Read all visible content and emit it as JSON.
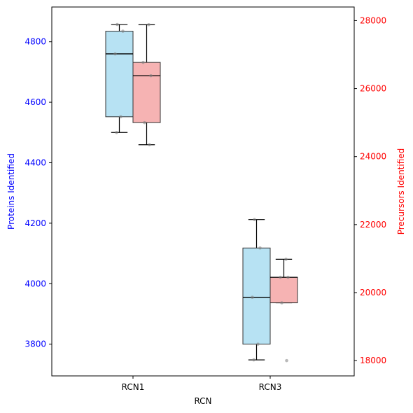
{
  "chart_data": {
    "type": "box",
    "title": "",
    "xlabel": "RCN",
    "categories": [
      "RCN1",
      "RCN3"
    ],
    "y_left": {
      "label": "Proteins Identified",
      "color": "#0000ff",
      "range": [
        3695,
        4915
      ],
      "ticks": [
        3800,
        4000,
        4200,
        4400,
        4600,
        4800
      ]
    },
    "y_right": {
      "label": "Precursors Identified",
      "color": "#ff0000",
      "range": [
        17550,
        28400
      ],
      "ticks": [
        18000,
        20000,
        22000,
        24000,
        26000,
        28000
      ]
    },
    "series": [
      {
        "axis": "left",
        "fill": "#87ceeb",
        "boxes": [
          {
            "category": "RCN1",
            "whisker_low": 4500,
            "q1": 4552,
            "median": 4760,
            "q3": 4835,
            "whisker_high": 4857,
            "points": [
              4500,
              4552,
              4760,
              4835,
              4857
            ]
          },
          {
            "category": "RCN3",
            "whisker_low": 3748,
            "q1": 3800,
            "median": 3955,
            "q3": 4118,
            "whisker_high": 4212,
            "points": [
              3748,
              3800,
              3955,
              4118,
              4212
            ]
          }
        ]
      },
      {
        "axis": "right",
        "fill": "#f08080",
        "boxes": [
          {
            "category": "RCN1",
            "whisker_low": 24350,
            "q1": 25000,
            "median": 26380,
            "q3": 26770,
            "whisker_high": 27880,
            "points": [
              24350,
              25000,
              26380,
              26770,
              27880
            ]
          },
          {
            "category": "RCN3",
            "whisker_low": 19700,
            "q1": 19700,
            "median": 20450,
            "q3": 20450,
            "whisker_high": 20980,
            "points": [
              18000,
              19700,
              20450,
              20450,
              20980
            ]
          }
        ]
      }
    ],
    "grid": false
  }
}
